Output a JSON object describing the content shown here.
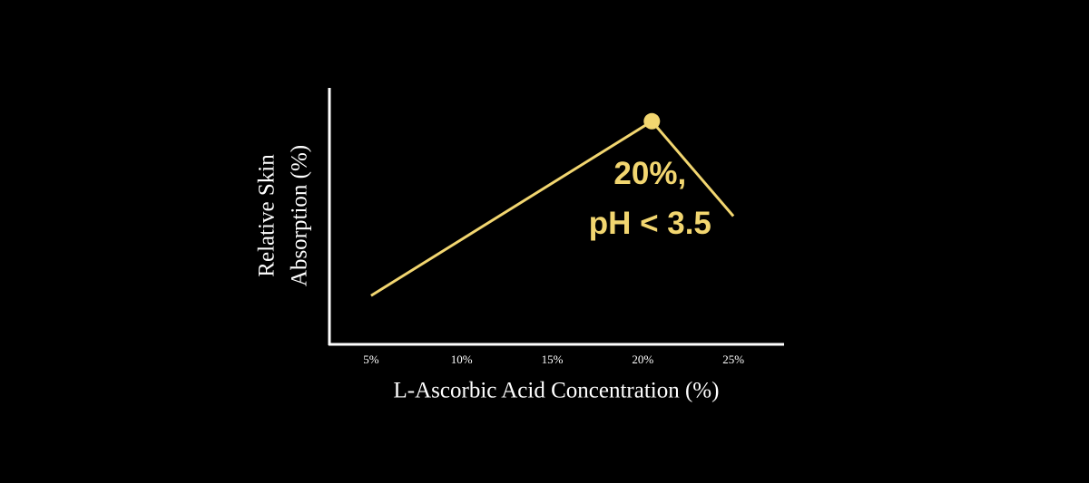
{
  "chart_data": {
    "type": "line",
    "x_label": "L-Ascorbic Acid Concentration (%)",
    "y_label": [
      "Relative Skin",
      "Absorption (%)"
    ],
    "annotation": [
      "20%,",
      "pH < 3.5"
    ],
    "x": [
      5,
      20.5,
      25
    ],
    "values": [
      19,
      87,
      50
    ],
    "color": "#f2d670",
    "xlim": [
      2.7,
      27.8
    ],
    "xticks": [
      {
        "value": 5,
        "label": "5%"
      },
      {
        "value": 10,
        "label": "10%"
      },
      {
        "value": 15,
        "label": "15%"
      },
      {
        "value": 20,
        "label": "20%"
      },
      {
        "value": 25,
        "label": "25%"
      }
    ],
    "ylim": [
      0,
      100
    ],
    "grid": false
  }
}
